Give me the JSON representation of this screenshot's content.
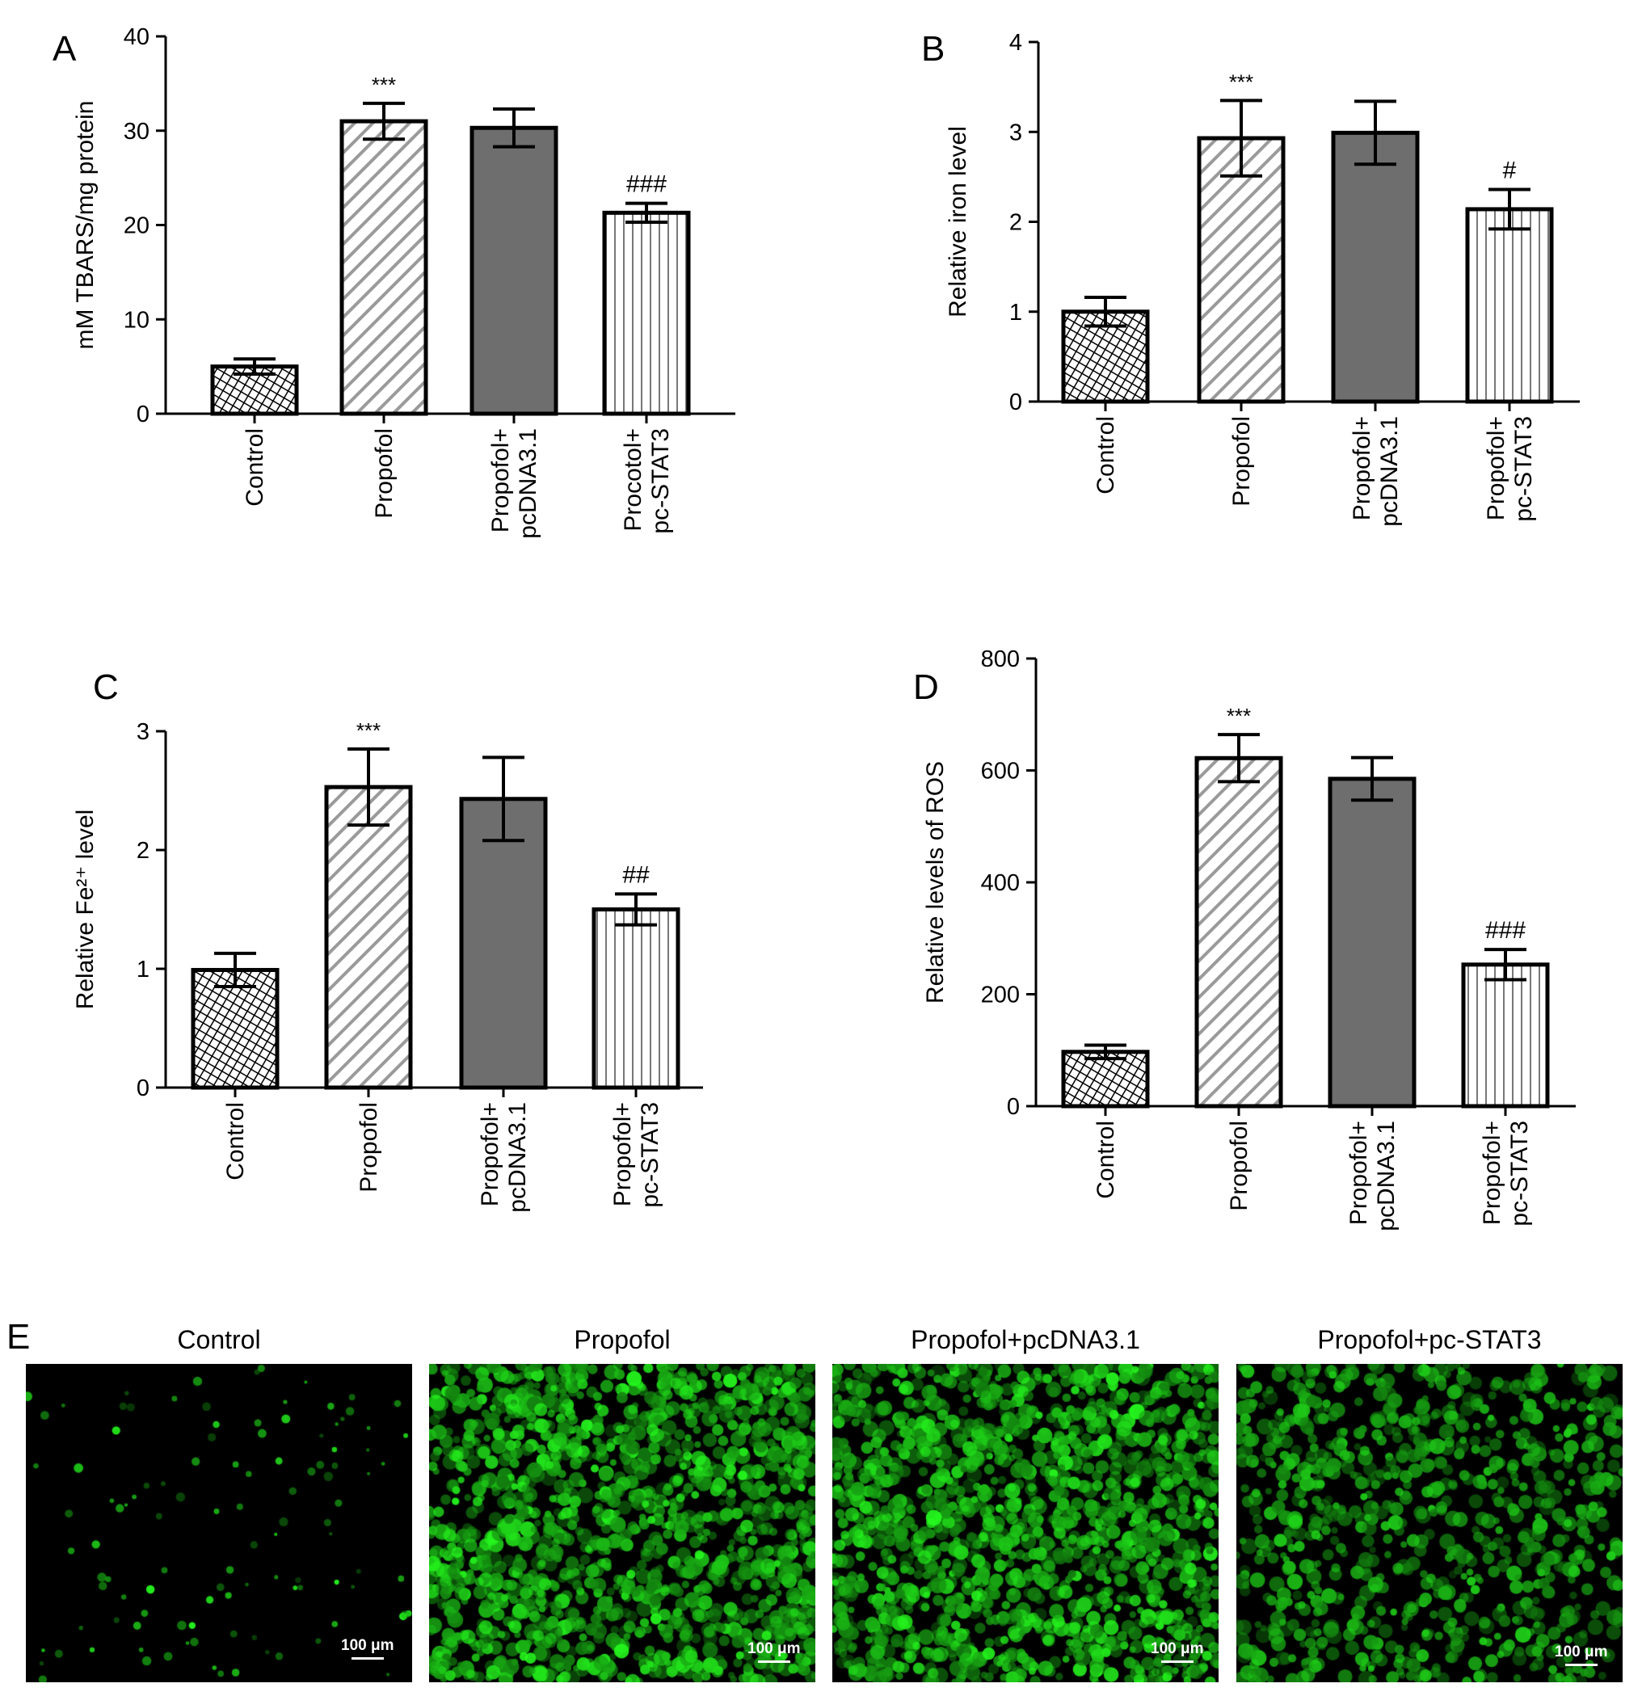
{
  "panel_e": {
    "letter": "E",
    "images": [
      {
        "title": "Control",
        "scale_label": "100 μm",
        "intensity": "low"
      },
      {
        "title": "Propofol",
        "scale_label": "100 μm",
        "intensity": "high"
      },
      {
        "title": "Propofol+pcDNA3.1",
        "scale_label": "100 μm",
        "intensity": "high"
      },
      {
        "title": "Propofol+pc-STAT3",
        "scale_label": "100 μm",
        "intensity": "medium"
      }
    ],
    "fluorescence_color": "#22cc22"
  },
  "colors": {
    "axis": "#000000",
    "bar_outline": "#000000",
    "solid_fill": "#6e6e6e",
    "hatch": "#9a9a9a"
  },
  "chart_data": [
    {
      "panel": "A",
      "type": "bar",
      "ylabel": "mM TBARS/mg protein",
      "ylim": [
        0,
        40
      ],
      "yticks": [
        0,
        10,
        20,
        30,
        40
      ],
      "categories": [
        [
          "Control"
        ],
        [
          "Propofol"
        ],
        [
          "Propofol+",
          "pcDNA3.1"
        ],
        [
          "Procotol+",
          "pc-STAT3"
        ]
      ],
      "values": [
        5.0,
        31.0,
        30.3,
        21.3
      ],
      "errors": [
        0.8,
        1.9,
        2.0,
        1.0
      ],
      "annotations": [
        "",
        "***",
        "",
        "###"
      ],
      "patterns": [
        "crosshatch",
        "diagonal",
        "solid",
        "vertical"
      ]
    },
    {
      "panel": "B",
      "type": "bar",
      "ylabel": "Relative iron level",
      "ylim": [
        0,
        4
      ],
      "yticks": [
        0,
        1,
        2,
        3,
        4
      ],
      "categories": [
        [
          "Control"
        ],
        [
          "Propofol"
        ],
        [
          "Propofol+",
          "pcDNA3.1"
        ],
        [
          "Propofol+",
          "pc-STAT3"
        ]
      ],
      "values": [
        1.0,
        2.93,
        2.99,
        2.14
      ],
      "errors": [
        0.16,
        0.42,
        0.35,
        0.22
      ],
      "annotations": [
        "",
        "***",
        "",
        "#"
      ],
      "patterns": [
        "crosshatch",
        "diagonal",
        "solid",
        "vertical"
      ]
    },
    {
      "panel": "C",
      "type": "bar",
      "ylabel": "Relative Fe²⁺ level",
      "ylim": [
        0,
        3
      ],
      "yticks": [
        0,
        1,
        2,
        3
      ],
      "categories": [
        [
          "Control"
        ],
        [
          "Propofol"
        ],
        [
          "Propofol+",
          "pcDNA3.1"
        ],
        [
          "Propofol+",
          "pc-STAT3"
        ]
      ],
      "values": [
        0.99,
        2.53,
        2.43,
        1.5
      ],
      "errors": [
        0.14,
        0.32,
        0.35,
        0.13
      ],
      "annotations": [
        "",
        "***",
        "",
        "##"
      ],
      "patterns": [
        "crosshatch",
        "diagonal",
        "solid",
        "vertical"
      ]
    },
    {
      "panel": "D",
      "type": "bar",
      "ylabel": "Relative levels of ROS",
      "ylim": [
        0,
        800
      ],
      "yticks": [
        0,
        200,
        400,
        600,
        800
      ],
      "categories": [
        [
          "Control"
        ],
        [
          "Propofol"
        ],
        [
          "Propofol+",
          "pcDNA3.1"
        ],
        [
          "Propofol+",
          "pc-STAT3"
        ]
      ],
      "values": [
        97,
        622,
        585,
        253
      ],
      "errors": [
        12,
        42,
        38,
        27
      ],
      "annotations": [
        "",
        "***",
        "",
        "###"
      ],
      "patterns": [
        "crosshatch",
        "diagonal",
        "solid",
        "vertical"
      ]
    }
  ]
}
